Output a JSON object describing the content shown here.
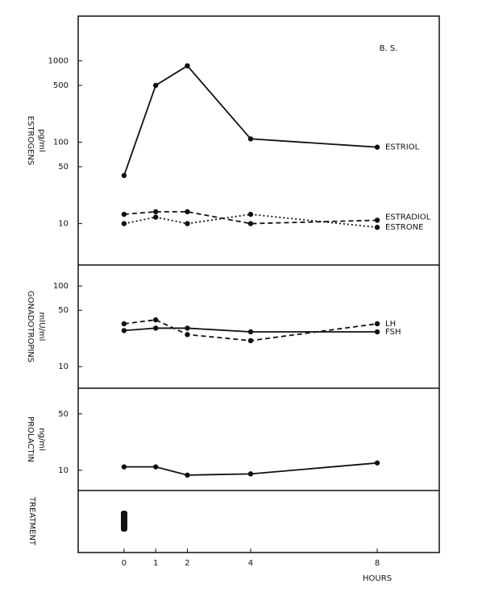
{
  "chart_data": [
    {
      "type": "line",
      "annotation": "B. S.",
      "y_label": "ESTROGENS",
      "y_unit": "pg/ml",
      "log_y": true,
      "x": [
        0,
        1,
        2,
        4,
        8
      ],
      "xlim": [
        -1.45,
        9.96
      ],
      "ylim": [
        3.1,
        3550
      ],
      "yticks": [
        10,
        50,
        100,
        500,
        1000
      ],
      "series": [
        {
          "name": "ESTRIOL",
          "color": "#111111",
          "style": "solid",
          "values": [
            39,
            500,
            870,
            110,
            87
          ]
        },
        {
          "name": "ESTRADIOL",
          "color": "#111111",
          "style": "dashed",
          "values": [
            13,
            14,
            14,
            10,
            11
          ]
        },
        {
          "name": "ESTRONE",
          "color": "#111111",
          "style": "dotted",
          "values": [
            10,
            12,
            10,
            13,
            9
          ]
        }
      ]
    },
    {
      "type": "line",
      "y_label": "GONADOTROPINS",
      "y_unit": "mIU/ml",
      "log_y": true,
      "x": [
        0,
        1,
        2,
        4,
        8
      ],
      "xlim": [
        -1.45,
        9.96
      ],
      "ylim": [
        5.4,
        182
      ],
      "yticks": [
        10,
        50,
        100
      ],
      "series": [
        {
          "name": "LH",
          "color": "#111111",
          "style": "dashed",
          "values": [
            34,
            38,
            25,
            21,
            34
          ]
        },
        {
          "name": "FSH",
          "color": "#111111",
          "style": "solid",
          "values": [
            28,
            30,
            30,
            27,
            27
          ]
        }
      ]
    },
    {
      "type": "line",
      "y_label": "PROLACTIN",
      "y_unit": "ng/ml",
      "log_y": true,
      "x": [
        0,
        1,
        2,
        4,
        8
      ],
      "xlim": [
        -1.45,
        9.96
      ],
      "xticks": [
        0,
        1,
        2,
        4,
        8
      ],
      "x_label": "HOURS",
      "ylim": [
        5.6,
        104
      ],
      "yticks": [
        10,
        50
      ],
      "series": [
        {
          "color": "#111111",
          "style": "solid",
          "values": [
            11,
            11,
            8.7,
            9,
            12.3
          ]
        }
      ]
    }
  ],
  "treatment": {
    "label": "TREATMENT"
  }
}
